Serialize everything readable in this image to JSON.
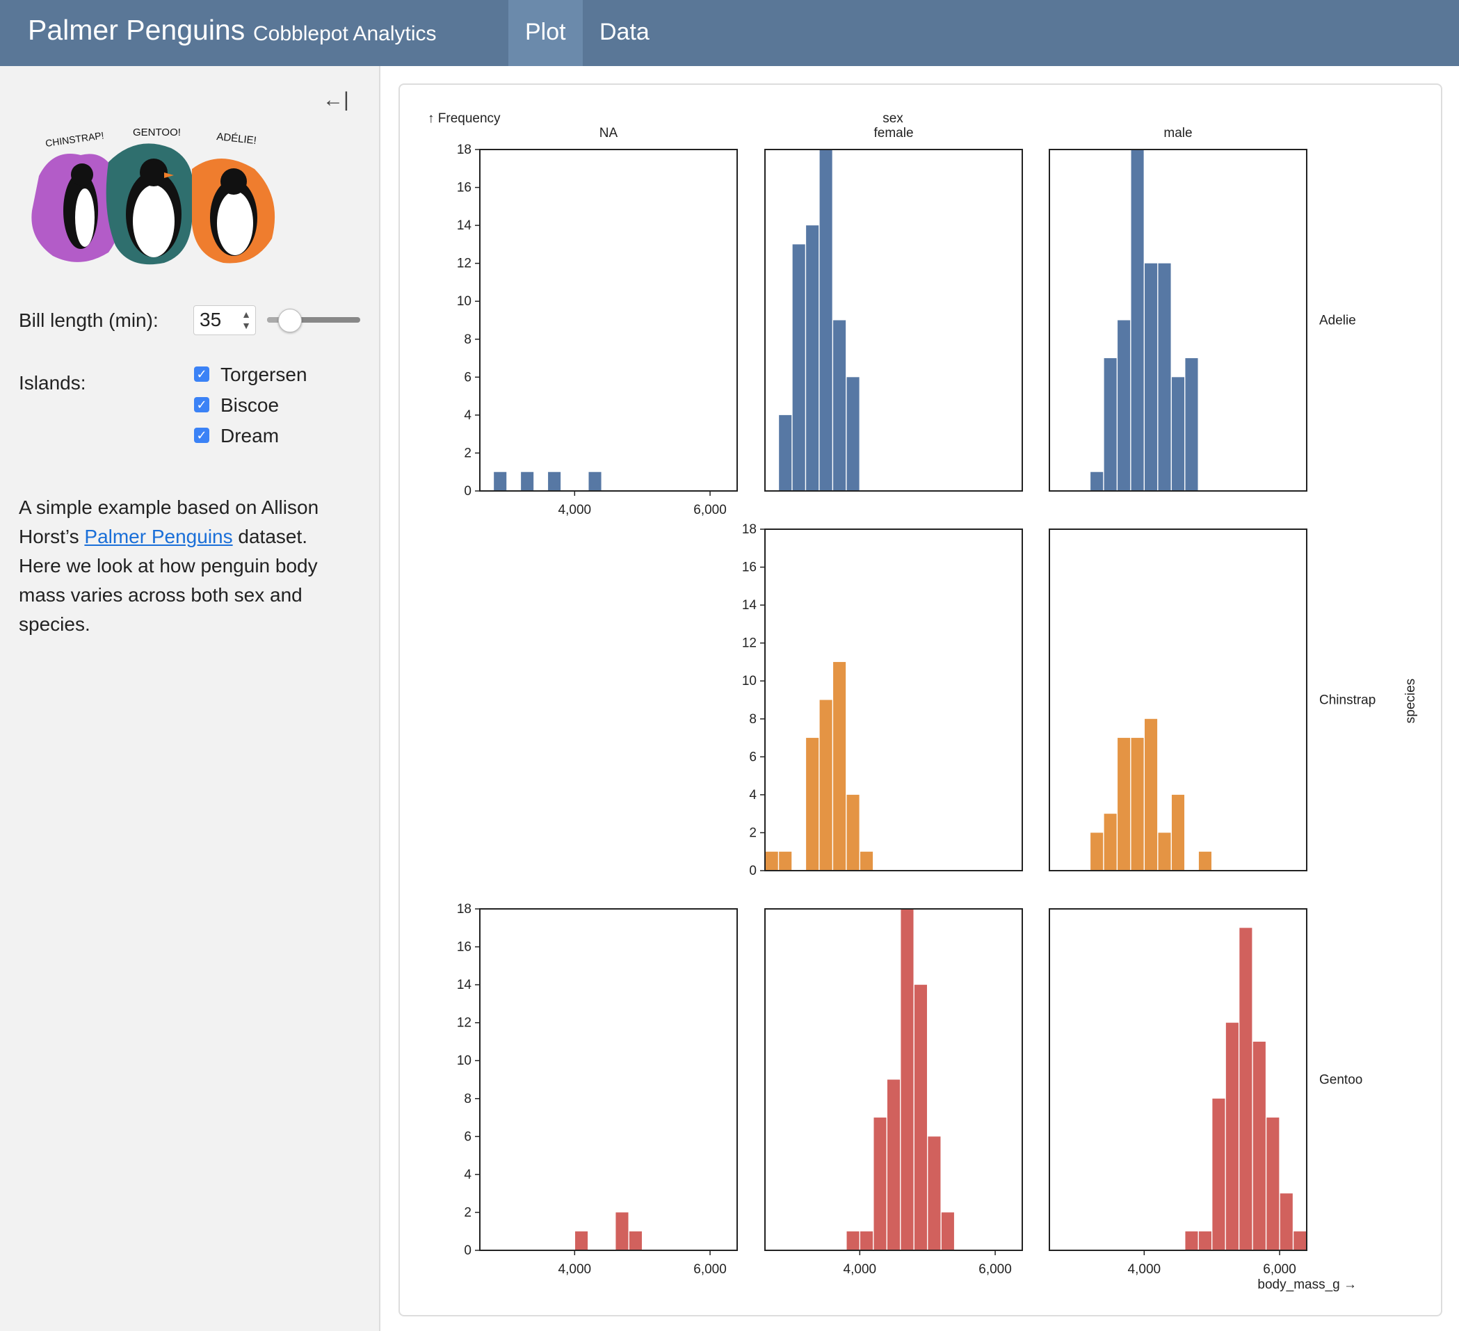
{
  "header": {
    "title": "Palmer Penguins",
    "subtitle": "Cobblepot Analytics",
    "tabs": [
      {
        "label": "Plot",
        "active": true
      },
      {
        "label": "Data",
        "active": false
      }
    ],
    "color": "#5a7797"
  },
  "sidebar": {
    "collapse_icon": "collapse-left-icon",
    "illustration": {
      "labels": [
        "CHINSTRAP!",
        "GENTOO!",
        "ADÉLIE!"
      ]
    },
    "bill_length": {
      "label": "Bill length (min):",
      "value": "35",
      "slider_fraction": 0.1
    },
    "islands": {
      "label": "Islands:",
      "options": [
        {
          "label": "Torgersen",
          "checked": true
        },
        {
          "label": "Biscoe",
          "checked": true
        },
        {
          "label": "Dream",
          "checked": true
        }
      ]
    },
    "description": {
      "before": "A simple example based on Allison Horst’s ",
      "link": "Palmer Penguins",
      "after": " dataset. Here we look at how penguin body mass varies across both sex and species."
    }
  },
  "chart_data": {
    "type": "bar",
    "histogram": true,
    "xlabel": "body_mass_g →",
    "ylabel": "↑ Frequency",
    "facet_x_label": "sex",
    "facet_y_label": "species",
    "columns": [
      "NA",
      "female",
      "male"
    ],
    "rows": [
      "Adelie",
      "Chinstrap",
      "Gentoo"
    ],
    "bin_width": 200,
    "xlim": [
      2600,
      6400
    ],
    "ylim": [
      0,
      18
    ],
    "x_ticks": [
      {
        "value": 4000,
        "label": "4,000"
      },
      {
        "value": 6000,
        "label": "6,000"
      }
    ],
    "y_ticks": [
      "0",
      "2",
      "4",
      "6",
      "8",
      "10",
      "12",
      "14",
      "16",
      "18"
    ],
    "grid": false,
    "colors": {
      "Adelie": "#5778a4",
      "Chinstrap": "#e49444",
      "Gentoo": "#d1615d"
    },
    "series": [
      {
        "species": "Adelie",
        "sex": "NA",
        "bins": [
          [
            2800,
            1
          ],
          [
            3200,
            1
          ],
          [
            3600,
            1
          ],
          [
            4200,
            1
          ]
        ]
      },
      {
        "species": "Adelie",
        "sex": "female",
        "bins": [
          [
            2800,
            4
          ],
          [
            3000,
            13
          ],
          [
            3200,
            14
          ],
          [
            3400,
            18
          ],
          [
            3600,
            9
          ],
          [
            3800,
            6
          ]
        ]
      },
      {
        "species": "Adelie",
        "sex": "male",
        "bins": [
          [
            3200,
            1
          ],
          [
            3400,
            7
          ],
          [
            3600,
            9
          ],
          [
            3800,
            18
          ],
          [
            4000,
            12
          ],
          [
            4200,
            12
          ],
          [
            4400,
            6
          ],
          [
            4600,
            7
          ]
        ]
      },
      {
        "species": "Chinstrap",
        "sex": "female",
        "bins": [
          [
            2600,
            1
          ],
          [
            2800,
            1
          ],
          [
            3200,
            7
          ],
          [
            3400,
            9
          ],
          [
            3600,
            11
          ],
          [
            3800,
            4
          ],
          [
            4000,
            1
          ]
        ]
      },
      {
        "species": "Chinstrap",
        "sex": "male",
        "bins": [
          [
            3200,
            2
          ],
          [
            3400,
            3
          ],
          [
            3600,
            7
          ],
          [
            3800,
            7
          ],
          [
            4000,
            8
          ],
          [
            4200,
            2
          ],
          [
            4400,
            4
          ],
          [
            4800,
            1
          ]
        ]
      },
      {
        "species": "Gentoo",
        "sex": "NA",
        "bins": [
          [
            4000,
            1
          ],
          [
            4600,
            2
          ],
          [
            4800,
            1
          ]
        ]
      },
      {
        "species": "Gentoo",
        "sex": "female",
        "bins": [
          [
            3800,
            1
          ],
          [
            4000,
            1
          ],
          [
            4200,
            7
          ],
          [
            4400,
            9
          ],
          [
            4600,
            18
          ],
          [
            4800,
            14
          ],
          [
            5000,
            6
          ],
          [
            5200,
            2
          ]
        ]
      },
      {
        "species": "Gentoo",
        "sex": "male",
        "bins": [
          [
            4600,
            1
          ],
          [
            4800,
            1
          ],
          [
            5000,
            8
          ],
          [
            5200,
            12
          ],
          [
            5400,
            17
          ],
          [
            5600,
            11
          ],
          [
            5800,
            7
          ],
          [
            6000,
            3
          ],
          [
            6200,
            1
          ]
        ]
      }
    ]
  }
}
